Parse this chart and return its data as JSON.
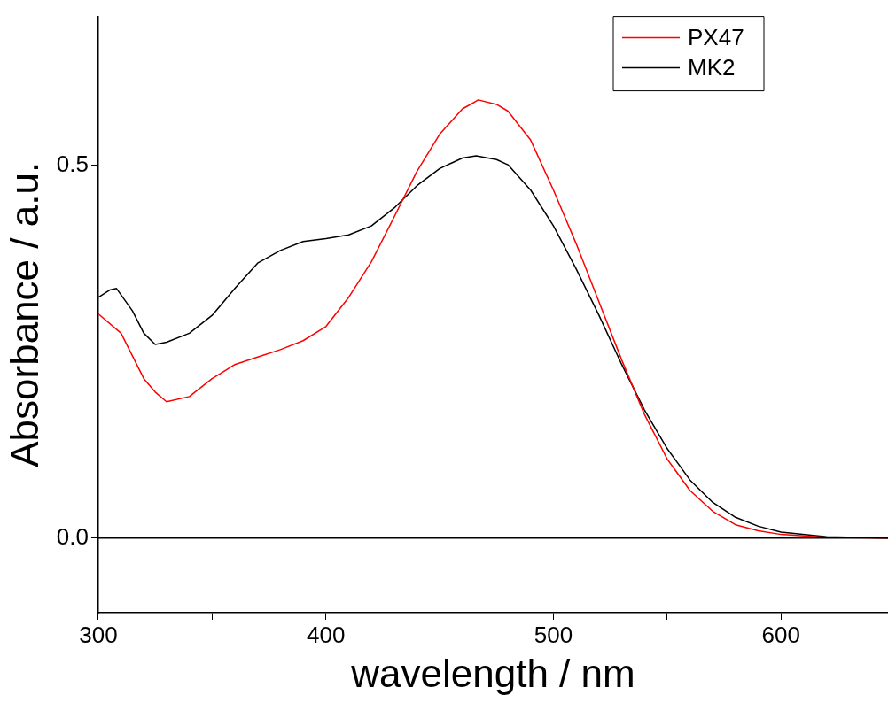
{
  "chart_data": {
    "type": "line",
    "xlabel": "wavelength / nm",
    "ylabel": "Absorbance / a.u.",
    "xlim": [
      300,
      647
    ],
    "xticks": [
      300,
      {
        "value": 350,
        "label": null
      },
      400,
      {
        "value": 450,
        "label": null
      },
      500,
      {
        "value": 550,
        "label": null
      },
      600
    ],
    "ylim": [
      -0.1,
      0.7
    ],
    "yticks": [
      {
        "value": 0,
        "label": "0.0"
      },
      {
        "value": 0.25,
        "label": null
      },
      0.5
    ],
    "grid": false,
    "legend": "top right",
    "marker": "none",
    "line_style": "solid",
    "ref_lines": [
      {
        "axis": "y",
        "value": 0,
        "color": "#000000"
      }
    ],
    "series": [
      {
        "name": "PX47",
        "color": "#ff0000",
        "x": [
          300,
          310,
          320,
          325,
          330,
          340,
          350,
          360,
          370,
          380,
          390,
          400,
          410,
          420,
          430,
          440,
          450,
          460,
          467,
          475,
          480,
          490,
          500,
          510,
          520,
          530,
          540,
          550,
          560,
          570,
          580,
          590,
          600,
          620,
          647
        ],
        "values": [
          0.301,
          0.275,
          0.214,
          0.196,
          0.183,
          0.19,
          0.214,
          0.233,
          0.243,
          0.253,
          0.265,
          0.284,
          0.323,
          0.371,
          0.431,
          0.492,
          0.542,
          0.576,
          0.588,
          0.582,
          0.573,
          0.534,
          0.467,
          0.395,
          0.317,
          0.239,
          0.166,
          0.106,
          0.064,
          0.036,
          0.018,
          0.01,
          0.005,
          0.001,
          0
        ]
      },
      {
        "name": "MK2",
        "color": "#000000",
        "x": [
          300,
          305,
          308,
          315,
          320,
          325,
          330,
          340,
          350,
          360,
          370,
          380,
          390,
          400,
          410,
          420,
          430,
          440,
          450,
          460,
          466,
          475,
          480,
          490,
          500,
          510,
          520,
          530,
          540,
          550,
          560,
          570,
          580,
          590,
          600,
          620,
          647
        ],
        "values": [
          0.323,
          0.333,
          0.335,
          0.305,
          0.275,
          0.26,
          0.263,
          0.275,
          0.299,
          0.335,
          0.369,
          0.386,
          0.398,
          0.402,
          0.407,
          0.419,
          0.443,
          0.473,
          0.496,
          0.51,
          0.513,
          0.508,
          0.501,
          0.467,
          0.419,
          0.361,
          0.299,
          0.233,
          0.172,
          0.12,
          0.078,
          0.048,
          0.028,
          0.016,
          0.008,
          0.002,
          0
        ]
      }
    ]
  }
}
